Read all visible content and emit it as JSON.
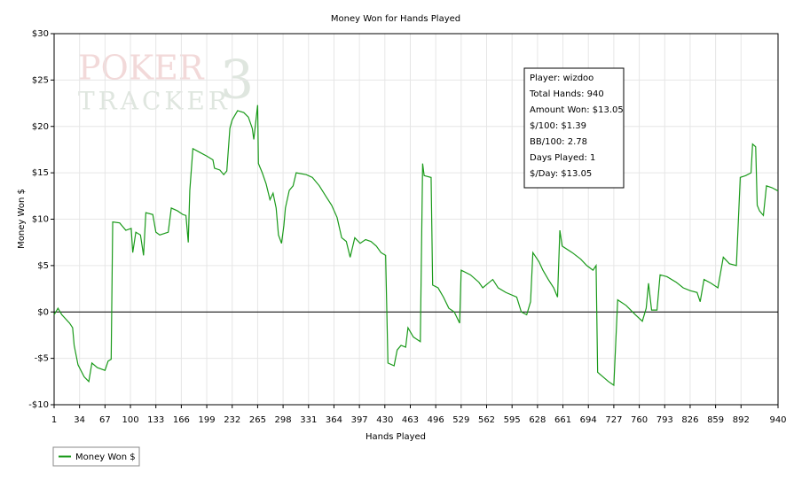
{
  "chart_data": {
    "type": "line",
    "title": "Money Won for Hands Played",
    "xlabel": "Hands Played",
    "ylabel": "Money Won $",
    "watermark": [
      "POKER",
      "TRACKER",
      "3"
    ],
    "annotation": [
      "Player: wizdoo",
      "Total Hands: 940",
      "Amount Won: $13.05",
      "$/100: $1.39",
      "BB/100: 2.78",
      "Days Played: 1",
      "$/Day: $13.05"
    ],
    "xlim": [
      1,
      940
    ],
    "xticks": [
      1,
      34,
      67,
      100,
      133,
      166,
      199,
      232,
      265,
      298,
      331,
      364,
      397,
      430,
      463,
      496,
      529,
      562,
      595,
      628,
      661,
      694,
      727,
      760,
      793,
      826,
      859,
      892,
      940
    ],
    "ylim": [
      -10,
      30
    ],
    "yticks": [
      {
        "value": -10,
        "label": "-$10"
      },
      {
        "value": -5,
        "label": "-$5"
      },
      {
        "value": 0,
        "label": "$0"
      },
      {
        "value": 5,
        "label": "$5"
      },
      {
        "value": 10,
        "label": "$10"
      },
      {
        "value": 15,
        "label": "$15"
      },
      {
        "value": 20,
        "label": "$20"
      },
      {
        "value": 25,
        "label": "$25"
      },
      {
        "value": 30,
        "label": "$30"
      }
    ],
    "grid": true,
    "zero_line": true,
    "legend": "bottom-left",
    "x": [
      1,
      6,
      11,
      21,
      25,
      27,
      32,
      40,
      46,
      50,
      57,
      67,
      71,
      75,
      77,
      86,
      94,
      101,
      103,
      107,
      113,
      117,
      120,
      129,
      133,
      138,
      149,
      153,
      161,
      168,
      172,
      175,
      177,
      181,
      190,
      199,
      207,
      209,
      216,
      221,
      225,
      229,
      232,
      239,
      247,
      253,
      258,
      260,
      265,
      266,
      271,
      276,
      281,
      285,
      289,
      292,
      296,
      299,
      301,
      306,
      311,
      315,
      328,
      336,
      345,
      354,
      361,
      368,
      374,
      380,
      385,
      391,
      398,
      405,
      412,
      419,
      425,
      431,
      434,
      442,
      446,
      451,
      457,
      460,
      467,
      476,
      479,
      481,
      490,
      492,
      499,
      506,
      513,
      520,
      527,
      529,
      541,
      552,
      557,
      564,
      570,
      577,
      587,
      601,
      607,
      614,
      619,
      622,
      630,
      635,
      642,
      649,
      654,
      657,
      660,
      673,
      684,
      692,
      700,
      704,
      706,
      713,
      720,
      727,
      732,
      743,
      755,
      764,
      769,
      772,
      776,
      783,
      787,
      796,
      808,
      817,
      826,
      835,
      839,
      844,
      853,
      862,
      869,
      877,
      886,
      891,
      898,
      905,
      907,
      911,
      913,
      916,
      921,
      925,
      932,
      940
    ],
    "series": [
      {
        "name": "Money Won $",
        "color": "#1a9a1a",
        "values": [
          -0.3,
          0.4,
          -0.3,
          -1.2,
          -1.7,
          -3.6,
          -5.7,
          -7.0,
          -7.5,
          -5.5,
          -6.0,
          -6.3,
          -5.3,
          -5.1,
          9.7,
          9.6,
          8.8,
          9.0,
          6.4,
          8.6,
          8.3,
          6.1,
          10.7,
          10.5,
          8.6,
          8.3,
          8.6,
          11.2,
          10.9,
          10.5,
          10.4,
          7.5,
          13.1,
          17.6,
          17.2,
          16.8,
          16.4,
          15.5,
          15.3,
          14.8,
          15.2,
          19.8,
          20.7,
          21.7,
          21.5,
          21.0,
          19.8,
          18.6,
          22.3,
          16.0,
          15.0,
          13.8,
          12.1,
          12.8,
          11.2,
          8.3,
          7.4,
          9.3,
          11.2,
          13.1,
          13.6,
          15.0,
          14.8,
          14.5,
          13.6,
          12.4,
          11.5,
          10.2,
          8.0,
          7.6,
          5.9,
          8.0,
          7.4,
          7.8,
          7.6,
          7.1,
          6.4,
          6.1,
          -5.5,
          -5.8,
          -4.1,
          -3.6,
          -3.8,
          -1.7,
          -2.7,
          -3.2,
          16.0,
          14.7,
          14.5,
          2.9,
          2.6,
          1.6,
          0.4,
          0,
          -1.2,
          4.5,
          4.0,
          3.2,
          2.6,
          3.1,
          3.5,
          2.6,
          2.1,
          1.6,
          0,
          -0.3,
          1.1,
          6.4,
          5.4,
          4.5,
          3.5,
          2.6,
          1.6,
          8.8,
          7.1,
          6.4,
          5.7,
          5.0,
          4.5,
          5.0,
          -6.5,
          -7.0,
          -7.5,
          -7.9,
          1.3,
          0.7,
          -0.3,
          -1.0,
          0.4,
          3.1,
          0.2,
          0.2,
          4.0,
          3.8,
          3.2,
          2.6,
          2.3,
          2.1,
          1.1,
          3.5,
          3.1,
          2.6,
          5.9,
          5.2,
          5.0,
          14.5,
          14.7,
          15.0,
          18.1,
          17.8,
          11.5,
          10.9,
          10.4,
          13.6,
          13.4,
          13.05
        ]
      }
    ]
  }
}
